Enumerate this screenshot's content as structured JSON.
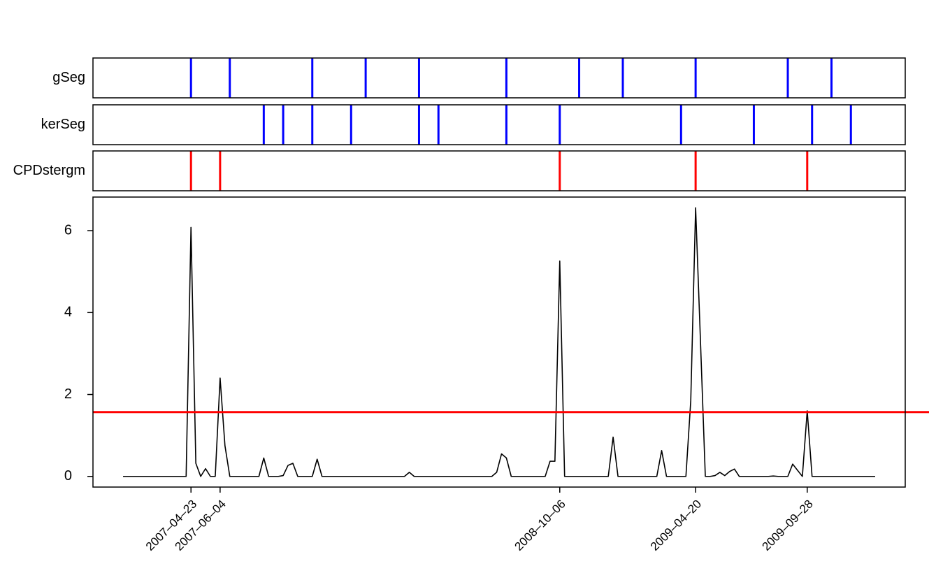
{
  "chart_data": [
    {
      "type": "event",
      "label": "gSeg",
      "color": "#0000ff",
      "xlim": [
        -6.2,
        161.2
      ],
      "x": [
        14,
        22,
        39,
        50,
        61,
        79,
        94,
        103,
        118,
        137,
        146
      ]
    },
    {
      "type": "event",
      "label": "kerSeg",
      "color": "#0000ff",
      "xlim": [
        -6.2,
        161.2
      ],
      "x": [
        29,
        33,
        39,
        47,
        61,
        65,
        79,
        90,
        115,
        130,
        142,
        150
      ]
    },
    {
      "type": "event",
      "label": "CPDstergm",
      "color": "#ff0000",
      "xlim": [
        -6.2,
        161.2
      ],
      "x": [
        14,
        20,
        90,
        118,
        141
      ]
    },
    {
      "type": "line",
      "color": "#000000",
      "xlim": [
        -6.2,
        161.2
      ],
      "ylim": [
        -0.26,
        6.82
      ],
      "yticks": [
        0,
        2,
        4,
        6
      ],
      "xticks": [
        {
          "value": 14,
          "label": "2007–04–23"
        },
        {
          "value": 20,
          "label": "2007–06–04"
        },
        {
          "value": 90,
          "label": "2008–10–06"
        },
        {
          "value": 118,
          "label": "2009–04–20"
        },
        {
          "value": 141,
          "label": "2009–09–28"
        }
      ],
      "threshold": {
        "value": 1.57,
        "color": "#ff0000"
      },
      "values": [
        0,
        0,
        0,
        0,
        0,
        0,
        0,
        0,
        0,
        0,
        0,
        0,
        0,
        0,
        6.08,
        0.32,
        0,
        0.19,
        0,
        0,
        2.4,
        0.75,
        0,
        0,
        0,
        0,
        0,
        0,
        0,
        0.45,
        0,
        0,
        0,
        0.02,
        0.27,
        0.32,
        0,
        0,
        0,
        0,
        0.42,
        0,
        0,
        0,
        0,
        0,
        0,
        0,
        0,
        0,
        0,
        0,
        0,
        0,
        0,
        0,
        0,
        0,
        0,
        0.1,
        0,
        0,
        0,
        0,
        0,
        0,
        0,
        0,
        0,
        0,
        0,
        0,
        0,
        0,
        0,
        0,
        0,
        0.1,
        0.55,
        0.45,
        0,
        0,
        0,
        0,
        0,
        0,
        0,
        0,
        0.37,
        0.37,
        5.26,
        0,
        0,
        0,
        0,
        0,
        0,
        0,
        0,
        0,
        0,
        0.96,
        0,
        0,
        0,
        0,
        0,
        0,
        0,
        0,
        0,
        0.63,
        0,
        0,
        0,
        0,
        0,
        1.85,
        6.56,
        3.3,
        0,
        0,
        0.02,
        0.1,
        0.02,
        0.12,
        0.18,
        0,
        0,
        0,
        0,
        0,
        0,
        0,
        0.01,
        0,
        0,
        0,
        0.3,
        0.15,
        0,
        1.6,
        0,
        0,
        0,
        0,
        0,
        0,
        0,
        0,
        0,
        0,
        0,
        0,
        0,
        0
      ]
    }
  ]
}
